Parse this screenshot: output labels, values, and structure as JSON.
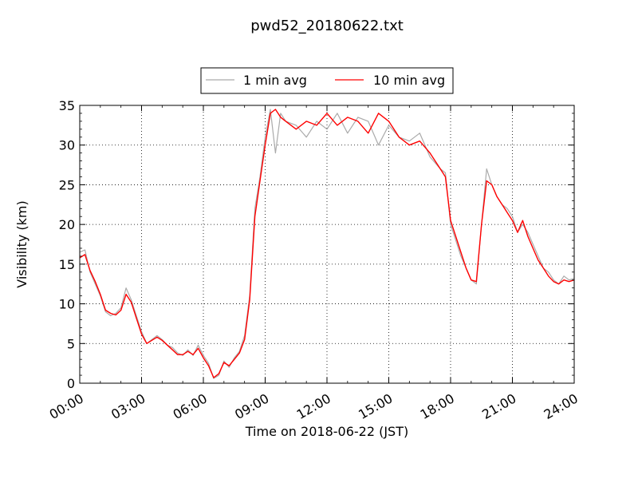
{
  "chart_data": {
    "type": "line",
    "title": "pwd52_20180622.txt",
    "xlabel": "Time on 2018-06-22 (JST)",
    "ylabel": "Visibility (km)",
    "xlim_hours": [
      0,
      24
    ],
    "ylim": [
      0,
      35
    ],
    "xticks": [
      "00:00",
      "03:00",
      "06:00",
      "09:00",
      "12:00",
      "15:00",
      "18:00",
      "21:00",
      "24:00"
    ],
    "yticks": [
      0,
      5,
      10,
      15,
      20,
      25,
      30,
      35
    ],
    "grid": true,
    "legend_placement": "top-center",
    "legend": [
      "1 min avg",
      "10 min avg"
    ],
    "series": [
      {
        "name": "1 min avg",
        "color": "#aaaaaa",
        "x": [
          0.0,
          0.25,
          0.5,
          0.75,
          1.0,
          1.25,
          1.5,
          1.75,
          2.0,
          2.25,
          2.5,
          2.75,
          3.0,
          3.25,
          3.5,
          3.75,
          4.0,
          4.25,
          4.5,
          4.75,
          5.0,
          5.25,
          5.5,
          5.75,
          6.0,
          6.25,
          6.5,
          6.75,
          7.0,
          7.25,
          7.5,
          7.75,
          8.0,
          8.25,
          8.5,
          8.75,
          9.0,
          9.25,
          9.5,
          9.75,
          10.0,
          10.5,
          11.0,
          11.5,
          12.0,
          12.5,
          13.0,
          13.5,
          14.0,
          14.5,
          15.0,
          15.5,
          16.0,
          16.5,
          17.0,
          17.5,
          17.75,
          18.0,
          18.25,
          18.5,
          18.75,
          19.0,
          19.25,
          19.5,
          19.75,
          20.0,
          20.25,
          20.5,
          20.75,
          21.0,
          21.25,
          21.5,
          21.75,
          22.0,
          22.25,
          22.5,
          22.75,
          23.0,
          23.25,
          23.5,
          23.75,
          24.0
        ],
        "y": [
          16.5,
          16.8,
          14.0,
          12.5,
          11.0,
          9.0,
          8.5,
          8.8,
          9.5,
          12.0,
          10.5,
          8.5,
          6.5,
          5.0,
          5.5,
          6.0,
          5.5,
          4.8,
          4.5,
          3.8,
          3.5,
          4.2,
          3.5,
          4.8,
          3.5,
          2.5,
          0.6,
          1.0,
          2.8,
          2.0,
          3.2,
          4.0,
          6.0,
          11.0,
          22.0,
          26.0,
          31.0,
          34.5,
          29.0,
          34.0,
          33.0,
          32.5,
          31.0,
          33.0,
          32.0,
          34.0,
          31.5,
          33.5,
          33.0,
          30.0,
          32.5,
          31.0,
          30.5,
          31.5,
          28.5,
          27.0,
          26.5,
          20.0,
          18.0,
          16.0,
          14.5,
          13.0,
          12.5,
          20.0,
          27.0,
          25.0,
          23.5,
          22.5,
          22.0,
          21.0,
          19.0,
          20.0,
          19.0,
          17.5,
          16.0,
          14.5,
          14.0,
          13.0,
          12.5,
          13.5,
          13.0,
          13.2
        ]
      },
      {
        "name": "10 min avg",
        "color": "#ff0000",
        "x": [
          0.0,
          0.25,
          0.5,
          0.75,
          1.0,
          1.25,
          1.5,
          1.75,
          2.0,
          2.25,
          2.5,
          2.75,
          3.0,
          3.25,
          3.5,
          3.75,
          4.0,
          4.25,
          4.5,
          4.75,
          5.0,
          5.25,
          5.5,
          5.75,
          6.0,
          6.25,
          6.5,
          6.75,
          7.0,
          7.25,
          7.5,
          7.75,
          8.0,
          8.25,
          8.5,
          8.75,
          9.0,
          9.25,
          9.5,
          9.75,
          10.0,
          10.5,
          11.0,
          11.5,
          12.0,
          12.5,
          13.0,
          13.5,
          14.0,
          14.5,
          15.0,
          15.5,
          16.0,
          16.5,
          17.0,
          17.5,
          17.75,
          18.0,
          18.25,
          18.5,
          18.75,
          19.0,
          19.25,
          19.5,
          19.75,
          20.0,
          20.25,
          20.5,
          20.75,
          21.0,
          21.25,
          21.5,
          21.75,
          22.0,
          22.25,
          22.5,
          22.75,
          23.0,
          23.25,
          23.5,
          23.75,
          24.0
        ],
        "y": [
          15.8,
          16.2,
          14.2,
          12.8,
          11.2,
          9.2,
          8.8,
          8.6,
          9.2,
          11.2,
          10.2,
          8.2,
          6.2,
          5.0,
          5.4,
          5.8,
          5.4,
          4.8,
          4.2,
          3.6,
          3.6,
          4.0,
          3.6,
          4.4,
          3.2,
          2.2,
          0.7,
          1.2,
          2.6,
          2.2,
          3.0,
          3.8,
          5.5,
          10.5,
          21.0,
          25.5,
          30.0,
          34.0,
          34.5,
          33.5,
          33.0,
          32.0,
          33.0,
          32.5,
          34.0,
          32.5,
          33.5,
          33.0,
          31.5,
          34.0,
          33.0,
          31.0,
          30.0,
          30.5,
          29.0,
          27.0,
          26.0,
          20.5,
          18.5,
          16.5,
          14.5,
          13.0,
          12.8,
          20.0,
          25.5,
          25.0,
          23.5,
          22.5,
          21.5,
          20.5,
          19.0,
          20.5,
          18.5,
          17.0,
          15.5,
          14.5,
          13.5,
          12.8,
          12.5,
          13.0,
          12.8,
          13.0
        ]
      }
    ]
  }
}
